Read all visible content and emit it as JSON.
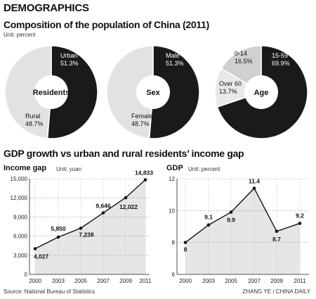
{
  "section_label": "DEMOGRAPHICS",
  "title": "Composition of the population of China (2011)",
  "unit": "Unit: percent",
  "pies": [
    {
      "center_label": "Residents",
      "slices": [
        {
          "name": "Urban",
          "value": 51.3,
          "display": "51.3%",
          "color": "#1a1a1a"
        },
        {
          "name": "Rural",
          "value": 48.7,
          "display": "48.7%",
          "color": "#e2e2e2"
        }
      ]
    },
    {
      "center_label": "Sex",
      "slices": [
        {
          "name": "Male",
          "value": 51.3,
          "display": "51.3%",
          "color": "#1a1a1a"
        },
        {
          "name": "Female",
          "value": 48.7,
          "display": "48.7%",
          "color": "#e2e2e2"
        }
      ]
    },
    {
      "center_label": "Age",
      "slices": [
        {
          "name": "15-59",
          "value": 69.9,
          "display": "69.9%",
          "color": "#1a1a1a"
        },
        {
          "name": "Over 60",
          "value": 13.7,
          "display": "13.7%",
          "color": "#e8e8e8"
        },
        {
          "name": "0-14",
          "value": 16.5,
          "display": "16.5%",
          "color": "#d0d0d0"
        }
      ]
    }
  ],
  "section2_title": "GDP growth vs urban and rural residents’ income gap",
  "chart_data": [
    {
      "type": "area",
      "title": "Income gap",
      "unit": "Unit: yuan",
      "x": [
        "2000",
        "2003",
        "2005",
        "2007",
        "2009",
        "2011"
      ],
      "values": [
        4027,
        5850,
        7238,
        9646,
        12022,
        14833
      ],
      "labels": [
        "4,027",
        "5,850",
        "7,238",
        "9,646",
        "12,022",
        "14,833"
      ],
      "ylim": [
        0,
        15000
      ],
      "yticks": [
        0,
        3000,
        6000,
        9000,
        12000,
        15000
      ],
      "ytick_labels": [
        "0",
        "3,000",
        "6,000",
        "9,000",
        "12,000",
        "15,000"
      ],
      "grid": true
    },
    {
      "type": "area",
      "title": "GDP",
      "unit": "Unit: percent",
      "x": [
        "2000",
        "2003",
        "2005",
        "2007",
        "2009",
        "2011"
      ],
      "values": [
        8,
        9.1,
        9.9,
        11.4,
        8.7,
        9.2
      ],
      "labels": [
        "8",
        "9.1",
        "9.9",
        "11.4",
        "8.7",
        "9.2"
      ],
      "ylim": [
        6,
        12
      ],
      "yticks": [
        6,
        8,
        10,
        12
      ],
      "ytick_labels": [
        "6",
        "8",
        "10",
        "12"
      ],
      "grid": true
    }
  ],
  "source": "Source: National Bureau of Statistics",
  "credit": "ZHANG YE / CHINA DAILY"
}
